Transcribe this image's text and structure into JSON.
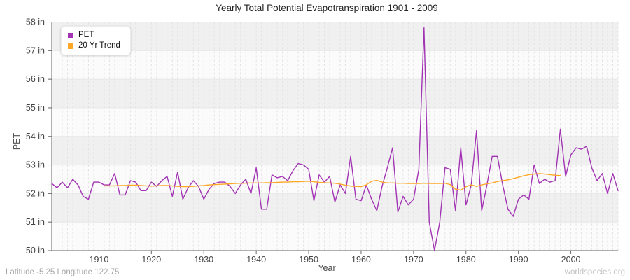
{
  "page": {
    "footer_left": "Latitude -5.25 Longitude 122.75",
    "footer_right": "worldspecies.org"
  },
  "chart_data": {
    "type": "line",
    "title": "Yearly Total Potential Evapotranspiration 1901 - 2009",
    "xlabel": "Year",
    "ylabel": "PET",
    "unit": "in",
    "xlim": [
      1901,
      2009
    ],
    "ylim": [
      50,
      58
    ],
    "x_ticks": [
      1910,
      1920,
      1930,
      1940,
      1950,
      1960,
      1970,
      1980,
      1990,
      2000
    ],
    "y_ticks": [
      50,
      51,
      52,
      53,
      54,
      55,
      56,
      57,
      58
    ],
    "y_tick_suffix": " in",
    "grid": {
      "vertical_dashed_every_year": true,
      "horizontal_every_inch": true,
      "alternating_bands": true
    },
    "legend": {
      "position": "top-left",
      "items": [
        "PET",
        "20 Yr Trend"
      ]
    },
    "series": [
      {
        "name": "PET",
        "color": "#a234b4",
        "year_start": 1901,
        "year_end": 2009,
        "values": [
          52.35,
          52.2,
          52.4,
          52.2,
          52.5,
          52.3,
          51.9,
          51.8,
          52.4,
          52.4,
          52.3,
          52.3,
          52.7,
          51.95,
          51.95,
          52.45,
          52.4,
          52.1,
          52.1,
          52.4,
          52.25,
          52.45,
          52.6,
          51.9,
          52.75,
          51.8,
          52.2,
          52.45,
          52.25,
          51.8,
          52.15,
          52.35,
          52.4,
          52.4,
          52.25,
          52.0,
          52.3,
          52.5,
          52.0,
          52.9,
          51.45,
          51.45,
          52.65,
          52.55,
          52.6,
          52.45,
          52.8,
          53.05,
          53.0,
          52.85,
          51.75,
          52.65,
          52.4,
          52.6,
          51.7,
          52.3,
          52.0,
          53.3,
          51.8,
          51.75,
          52.3,
          51.8,
          51.4,
          52.25,
          52.9,
          53.6,
          51.35,
          51.9,
          51.6,
          51.8,
          52.85,
          57.8,
          51.0,
          50.0,
          51.0,
          52.9,
          52.85,
          51.4,
          53.6,
          51.6,
          52.3,
          54.2,
          51.4,
          52.3,
          53.3,
          53.3,
          52.3,
          51.45,
          51.2,
          51.8,
          51.95,
          51.8,
          53.0,
          52.35,
          52.5,
          52.4,
          52.45,
          54.25,
          52.6,
          53.35,
          53.6,
          53.55,
          53.65,
          52.9,
          52.45,
          52.7,
          52.0,
          52.7,
          52.1
        ]
      },
      {
        "name": "20 Yr Trend",
        "color": "#ffa726",
        "year_start": 1911,
        "year_end": 1998,
        "values": [
          52.27,
          52.27,
          52.27,
          52.28,
          52.28,
          52.29,
          52.29,
          52.28,
          52.27,
          52.26,
          52.27,
          52.28,
          52.28,
          52.27,
          52.25,
          52.24,
          52.24,
          52.25,
          52.27,
          52.28,
          52.3,
          52.31,
          52.32,
          52.33,
          52.34,
          52.35,
          52.36,
          52.36,
          52.37,
          52.37,
          52.37,
          52.38,
          52.38,
          52.39,
          52.4,
          52.4,
          52.41,
          52.41,
          52.42,
          52.43,
          52.41,
          52.39,
          52.38,
          52.37,
          52.36,
          52.33,
          52.29,
          52.26,
          52.25,
          52.24,
          52.3,
          52.43,
          52.46,
          52.4,
          52.37,
          52.37,
          52.36,
          52.36,
          52.35,
          52.35,
          52.35,
          52.36,
          52.35,
          52.35,
          52.35,
          52.36,
          52.31,
          52.15,
          52.12,
          52.24,
          52.3,
          52.25,
          52.3,
          52.34,
          52.37,
          52.42,
          52.45,
          52.48,
          52.52,
          52.57,
          52.62,
          52.66,
          52.68,
          52.7,
          52.68,
          52.66,
          52.64,
          52.63
        ]
      }
    ],
    "colors": {
      "band_gray": "#f0f0f0",
      "band_light": "#fbfbfb",
      "grid_v": "#e2e2e2",
      "grid_h": "#e7e7e7",
      "axis": "#666666",
      "tick_text": "#444444"
    }
  }
}
